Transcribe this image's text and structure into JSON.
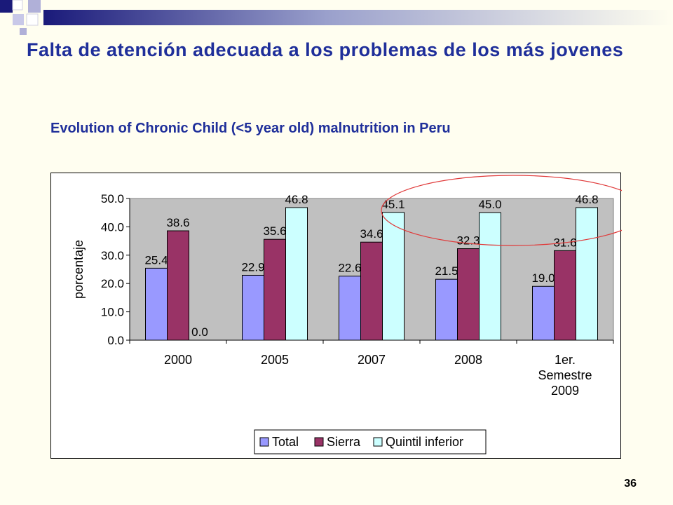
{
  "slide": {
    "title": "Falta de atención adecuada a los problemas de los más jovenes",
    "subtitle": "Evolution of Chronic Child (<5 year old) malnutrition in Peru",
    "page_number": "36"
  },
  "colors": {
    "title": "#1f2f9a",
    "background": "#fffef0",
    "plot_area": "#c0c0c0",
    "highlight_ellipse": "#e03a3a"
  },
  "chart_data": {
    "type": "bar",
    "categories": [
      "2000",
      "2005",
      "2007",
      "2008",
      "1er. Semestre 2009"
    ],
    "category_label_lines": [
      [
        "2000"
      ],
      [
        "2005"
      ],
      [
        "2007"
      ],
      [
        "2008"
      ],
      [
        "1er.",
        "Semestre",
        "2009"
      ]
    ],
    "series": [
      {
        "name": "Total",
        "color": "#9999ff",
        "values": [
          25.4,
          22.9,
          22.6,
          21.5,
          19.0
        ]
      },
      {
        "name": "Sierra",
        "color": "#993366",
        "values": [
          38.6,
          35.6,
          34.6,
          32.3,
          31.6
        ]
      },
      {
        "name": "Quintil inferior",
        "color": "#ccffff",
        "values": [
          0.0,
          46.8,
          45.1,
          45.0,
          46.8
        ]
      }
    ],
    "title": "",
    "xlabel": "",
    "ylabel": "porcentaje",
    "ylim": [
      0,
      50
    ],
    "yticks": [
      0,
      10,
      20,
      30,
      40,
      50
    ],
    "ytick_labels": [
      "0.0",
      "10.0",
      "20.0",
      "30.0",
      "40.0",
      "50.0"
    ],
    "grid": false,
    "legend_position": "bottom"
  }
}
